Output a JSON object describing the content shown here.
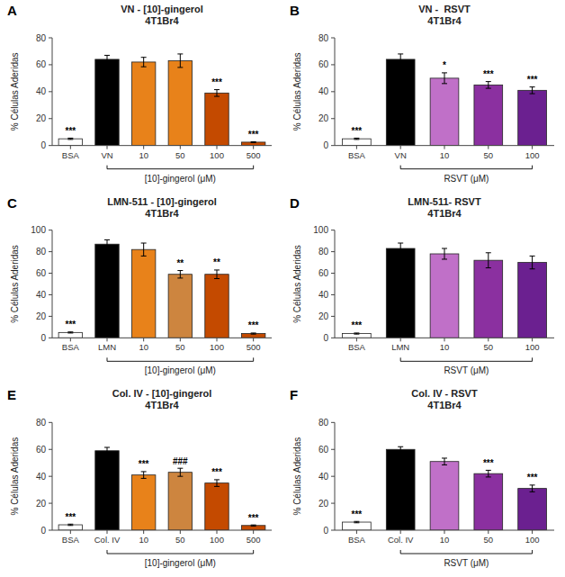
{
  "chart_data": [
    {
      "type": "bar",
      "title": "VN - [10]-gingerol\n4T1Br4",
      "categories": [
        "BSA",
        "VN",
        "10",
        "50",
        "100",
        "500"
      ],
      "values": [
        5.0,
        64.0,
        62.0,
        63.0,
        39.0,
        2.5
      ],
      "errors": [
        0.5,
        3.0,
        3.5,
        5.0,
        2.5,
        0.3
      ],
      "colors": [
        "white",
        "black",
        "#E8821A",
        "#E8821A",
        "#C44A00",
        "#C44A00"
      ],
      "annotations": [
        {
          "text": "A"
        },
        {
          "text": "***",
          "category": "BSA"
        },
        {
          "text": "***",
          "category": "100"
        },
        {
          "text": "***",
          "category": "500"
        }
      ],
      "xlabel": "[10]-gingerol (μM)",
      "ylabel": "% Células Aderidas",
      "ylim": [
        0,
        80
      ],
      "yticks": [
        0,
        20,
        40,
        60,
        80
      ],
      "grid": false
    },
    {
      "type": "bar",
      "title": "VN -  RSVT\n4T1Br4",
      "categories": [
        "BSA",
        "VN",
        "10",
        "50",
        "100"
      ],
      "values": [
        5.0,
        64.0,
        50.0,
        45.0,
        41.0
      ],
      "errors": [
        0.5,
        4.0,
        4.0,
        2.5,
        2.5
      ],
      "colors": [
        "white",
        "black",
        "#C070C8",
        "#8B30A0",
        "#6B2090"
      ],
      "annotations": [
        {
          "text": "B"
        },
        {
          "text": "***",
          "category": "BSA"
        },
        {
          "text": "*",
          "category": "10"
        },
        {
          "text": "***",
          "category": "50"
        },
        {
          "text": "***",
          "category": "100"
        }
      ],
      "xlabel": "RSVT (μM)",
      "ylabel": "% Células Aderidas",
      "ylim": [
        0,
        80
      ],
      "yticks": [
        0,
        20,
        40,
        60,
        80
      ],
      "grid": false
    },
    {
      "type": "bar",
      "title": "LMN-511 - [10]-gingerol\n4T1Br4",
      "categories": [
        "BSA",
        "LMN",
        "10",
        "50",
        "100",
        "500"
      ],
      "values": [
        5.0,
        87.0,
        82.0,
        59.0,
        59.0,
        4.0
      ],
      "errors": [
        0.5,
        4.0,
        6.0,
        3.5,
        4.0,
        0.5
      ],
      "colors": [
        "white",
        "black",
        "#E8821A",
        "#CD853F",
        "#C44A00",
        "#C44A00"
      ],
      "annotations": [
        {
          "text": "C"
        },
        {
          "text": "***",
          "category": "BSA"
        },
        {
          "text": "**",
          "category": "50"
        },
        {
          "text": "**",
          "category": "100"
        },
        {
          "text": "***",
          "category": "500"
        }
      ],
      "xlabel": "[10]-gingerol (μM)",
      "ylabel": "% Células Aderidas",
      "ylim": [
        0,
        100
      ],
      "yticks": [
        0,
        20,
        40,
        60,
        80,
        100
      ],
      "grid": false
    },
    {
      "type": "bar",
      "title": "LMN-511- RSVT\n4T1Br4",
      "categories": [
        "BSA",
        "LMN",
        "10",
        "50",
        "100"
      ],
      "values": [
        4.0,
        83.0,
        78.0,
        72.0,
        70.0
      ],
      "errors": [
        0.5,
        5.0,
        5.0,
        7.0,
        6.0
      ],
      "colors": [
        "white",
        "black",
        "#C070C8",
        "#8B30A0",
        "#6B2090"
      ],
      "annotations": [
        {
          "text": "D"
        },
        {
          "text": "***",
          "category": "BSA"
        }
      ],
      "xlabel": "RSVT (μM)",
      "ylabel": "% Células Aderidas",
      "ylim": [
        0,
        100
      ],
      "yticks": [
        0,
        20,
        40,
        60,
        80,
        100
      ],
      "grid": false
    },
    {
      "type": "bar",
      "title": "Col. IV - [10]-gingerol\n4T1Br4",
      "categories": [
        "BSA",
        "Col. IV",
        "10",
        "50",
        "100",
        "500"
      ],
      "values": [
        4.0,
        59.0,
        41.0,
        43.0,
        35.0,
        3.5
      ],
      "errors": [
        0.5,
        2.5,
        2.5,
        3.0,
        2.5,
        0.4
      ],
      "colors": [
        "white",
        "black",
        "#E8821A",
        "#CD853F",
        "#C44A00",
        "#C44A00"
      ],
      "annotations": [
        {
          "text": "E"
        },
        {
          "text": "***",
          "category": "BSA"
        },
        {
          "text": "***",
          "category": "10"
        },
        {
          "text": "###",
          "category": "50"
        },
        {
          "text": "***",
          "category": "100"
        },
        {
          "text": "***",
          "category": "500"
        }
      ],
      "xlabel": "[10]-gingerol (μM)",
      "ylabel": "% Células Aderidas",
      "ylim": [
        0,
        80
      ],
      "yticks": [
        0,
        20,
        40,
        60,
        80
      ],
      "grid": false
    },
    {
      "type": "bar",
      "title": "Col. IV - RSVT\n4T1Br4",
      "categories": [
        "BSA",
        "Col. IV",
        "10",
        "50",
        "100"
      ],
      "values": [
        6.0,
        60.0,
        51.0,
        42.0,
        31.0
      ],
      "errors": [
        0.5,
        2.0,
        2.5,
        2.5,
        2.5
      ],
      "colors": [
        "white",
        "black",
        "#C070C8",
        "#8B30A0",
        "#6B2090"
      ],
      "annotations": [
        {
          "text": "F"
        },
        {
          "text": "***",
          "category": "BSA"
        },
        {
          "text": "***",
          "category": "50"
        },
        {
          "text": "***",
          "category": "100"
        }
      ],
      "xlabel": "RSVT (μM)",
      "ylabel": "% Células Aderidas",
      "ylim": [
        0,
        80
      ],
      "yticks": [
        0,
        20,
        40,
        60,
        80
      ],
      "grid": false
    }
  ]
}
